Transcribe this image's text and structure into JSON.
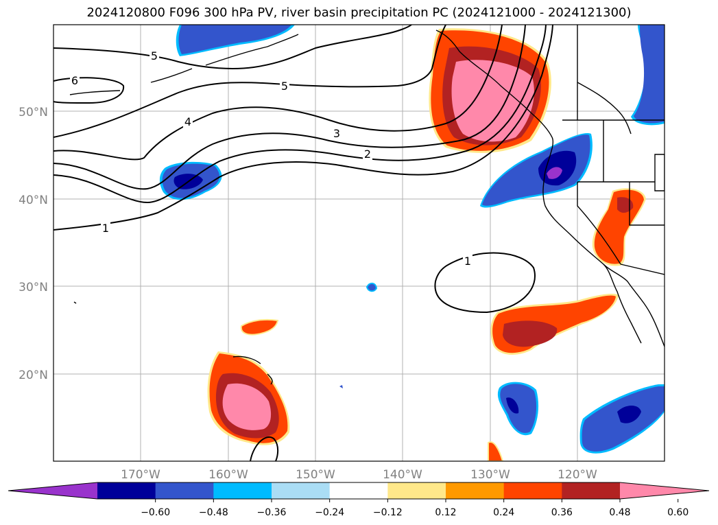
{
  "title": "2024120800 F096 300 hPa PV, river basin precipitation PC (2024121000 - 2024121300)",
  "lat_labels": [
    "50°N",
    "40°N",
    "30°N",
    "20°N"
  ],
  "lon_labels": [
    "170°W",
    "160°W",
    "150°W",
    "140°W",
    "130°W",
    "120°W"
  ],
  "contour_labels": [
    "6",
    "5",
    "5",
    "4",
    "3",
    "2",
    "1",
    "1"
  ],
  "colorbar": {
    "ticks": [
      "−0.60",
      "−0.48",
      "−0.36",
      "−0.24",
      "−0.12",
      "0.12",
      "0.24",
      "0.36",
      "0.48",
      "0.60"
    ],
    "colors": [
      "#9933cc",
      "#000099",
      "#3355cc",
      "#00bbff",
      "#aaddf5",
      "#ffffff",
      "#ffe88a",
      "#ff9900",
      "#ff4400",
      "#b22222",
      "#ff88aa"
    ]
  },
  "colors": {
    "purple": "#9933cc",
    "navy": "#000099",
    "blue": "#3355cc",
    "cyan": "#00bbff",
    "lightblue": "#aaddf5",
    "yellow": "#ffe88a",
    "orange": "#ff9900",
    "redorange": "#ff4400",
    "darkred": "#b22222",
    "pink": "#ff88aa"
  }
}
